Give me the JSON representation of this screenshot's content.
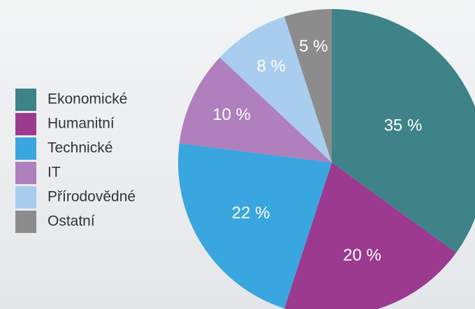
{
  "chart_data": {
    "type": "pie",
    "categories": [
      "Ekonomické",
      "Humanitní",
      "Technické",
      "IT",
      "Přírodovědné",
      "Ostatní"
    ],
    "values": [
      35,
      20,
      22,
      10,
      8,
      5
    ],
    "value_labels": [
      "35 %",
      "20 %",
      "22 %",
      "10 %",
      "8 %",
      "5 %"
    ],
    "colors": [
      "#3d8388",
      "#9c3a8f",
      "#3aa6df",
      "#b07fbd",
      "#a9cdef",
      "#8c8c8c"
    ]
  }
}
